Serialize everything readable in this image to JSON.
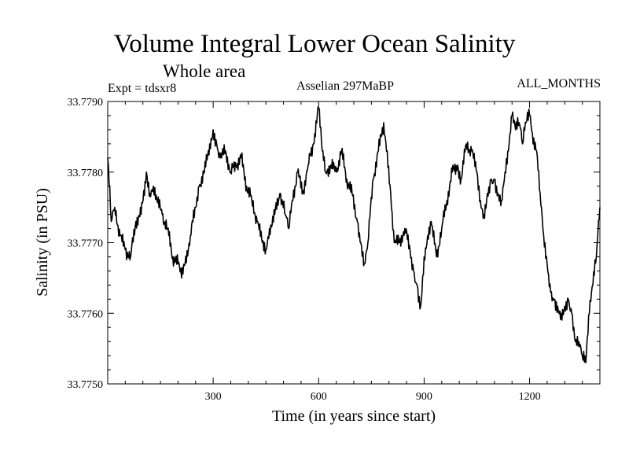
{
  "chart_data": {
    "type": "line",
    "title": "Volume Integral Lower Ocean Salinity",
    "subtitle": "Whole area",
    "annotations": {
      "experiment": "Expt = tdsxr8",
      "period": "Asselian 297MaBP",
      "months": "ALL_MONTHS"
    },
    "xlabel": "Time (in years since start)",
    "ylabel": "Salinity (in PSU)",
    "xlim": [
      0,
      1400
    ],
    "ylim": [
      33.775,
      33.779
    ],
    "xticks": [
      300,
      600,
      900,
      1200
    ],
    "xtick_labels": [
      "300",
      "600",
      "900",
      "1200"
    ],
    "yticks": [
      33.775,
      33.776,
      33.777,
      33.778,
      33.779
    ],
    "ytick_labels": [
      "33.7750",
      "33.7760",
      "33.7770",
      "33.7780",
      "33.7790"
    ],
    "grid": false,
    "series": [
      {
        "name": "Salinity",
        "x": [
          0,
          10,
          20,
          35,
          50,
          65,
          80,
          95,
          110,
          120,
          130,
          140,
          155,
          170,
          185,
          200,
          210,
          220,
          235,
          250,
          260,
          275,
          290,
          300,
          310,
          320,
          335,
          350,
          365,
          380,
          395,
          410,
          425,
          440,
          450,
          460,
          475,
          490,
          505,
          515,
          525,
          540,
          555,
          570,
          585,
          600,
          610,
          620,
          635,
          650,
          665,
          680,
          695,
          710,
          720,
          730,
          740,
          755,
          770,
          785,
          795,
          805,
          815,
          830,
          845,
          860,
          870,
          880,
          890,
          900,
          910,
          920,
          935,
          950,
          965,
          980,
          995,
          1005,
          1020,
          1035,
          1050,
          1060,
          1070,
          1080,
          1090,
          1100,
          1110,
          1120,
          1130,
          1140,
          1150,
          1160,
          1170,
          1180,
          1190,
          1200,
          1210,
          1220,
          1230,
          1240,
          1250,
          1260,
          1270,
          1280,
          1290,
          1300,
          1310,
          1320,
          1330,
          1340,
          1350,
          1360,
          1370,
          1380,
          1390,
          1400
        ],
        "values": [
          33.7782,
          33.7773,
          33.7775,
          33.7771,
          33.7769,
          33.7768,
          33.7773,
          33.7774,
          33.778,
          33.7777,
          33.7778,
          33.7776,
          33.7774,
          33.7772,
          33.7768,
          33.7767,
          33.7765,
          33.7767,
          33.7771,
          33.7775,
          33.7778,
          33.778,
          33.7784,
          33.7786,
          33.7784,
          33.7782,
          33.7783,
          33.778,
          33.7781,
          33.7782,
          33.7778,
          33.7776,
          33.7773,
          33.777,
          33.7769,
          33.7772,
          33.7774,
          33.7777,
          33.7774,
          33.7772,
          33.7776,
          33.778,
          33.7777,
          33.7781,
          33.7784,
          33.7789,
          33.7783,
          33.778,
          33.7781,
          33.778,
          33.7783,
          33.7779,
          33.7777,
          33.7773,
          33.777,
          33.7767,
          33.777,
          33.7779,
          33.7783,
          33.7787,
          33.7783,
          33.7777,
          33.777,
          33.777,
          33.7772,
          33.7769,
          33.7766,
          33.7764,
          33.7761,
          33.7768,
          33.7771,
          33.7773,
          33.7768,
          33.7772,
          33.7776,
          33.778,
          33.7781,
          33.7779,
          33.7784,
          33.7783,
          33.778,
          33.7776,
          33.7774,
          33.7777,
          33.7779,
          33.7779,
          33.7777,
          33.7776,
          33.778,
          33.7783,
          33.7788,
          33.7786,
          33.7787,
          33.7784,
          33.7787,
          33.7788,
          33.7784,
          33.7783,
          33.7777,
          33.7771,
          33.7767,
          33.7763,
          33.7762,
          33.7761,
          33.776,
          33.7761,
          33.7762,
          33.776,
          33.7756,
          33.7756,
          33.7754,
          33.7753,
          33.776,
          33.7764,
          33.7768,
          33.7775
        ]
      }
    ]
  }
}
